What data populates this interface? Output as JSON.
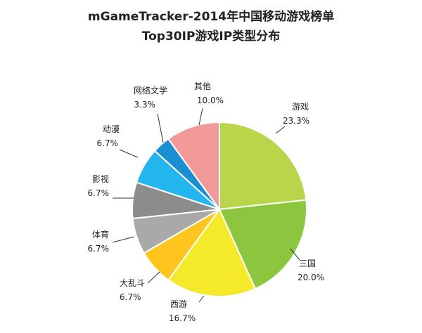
{
  "chart_data": {
    "type": "pie",
    "title": "mGameTracker-2014年中国移动游戏榜单",
    "subtitle": "Top30IP游戏IP类型分布",
    "slices": [
      {
        "name": "游戏",
        "value": 23.3,
        "label": "23.3%",
        "color": "#b9d54a"
      },
      {
        "name": "三国",
        "value": 20.0,
        "label": "20.0%",
        "color": "#8cc63f"
      },
      {
        "name": "西游",
        "value": 16.7,
        "label": "16.7%",
        "color": "#f4ea2a"
      },
      {
        "name": "大乱斗",
        "value": 6.7,
        "label": "6.7%",
        "color": "#fdc51d"
      },
      {
        "name": "体育",
        "value": 6.7,
        "label": "6.7%",
        "color": "#a9a9a9"
      },
      {
        "name": "影视",
        "value": 6.7,
        "label": "6.7%",
        "color": "#8c8c8c"
      },
      {
        "name": "动漫",
        "value": 6.7,
        "label": "6.7%",
        "color": "#22b5ee"
      },
      {
        "name": "网络文学",
        "value": 3.3,
        "label": "3.3%",
        "color": "#1a8fd1"
      },
      {
        "name": "其他",
        "value": 10.0,
        "label": "10.0%",
        "color": "#f29a9a"
      }
    ]
  }
}
